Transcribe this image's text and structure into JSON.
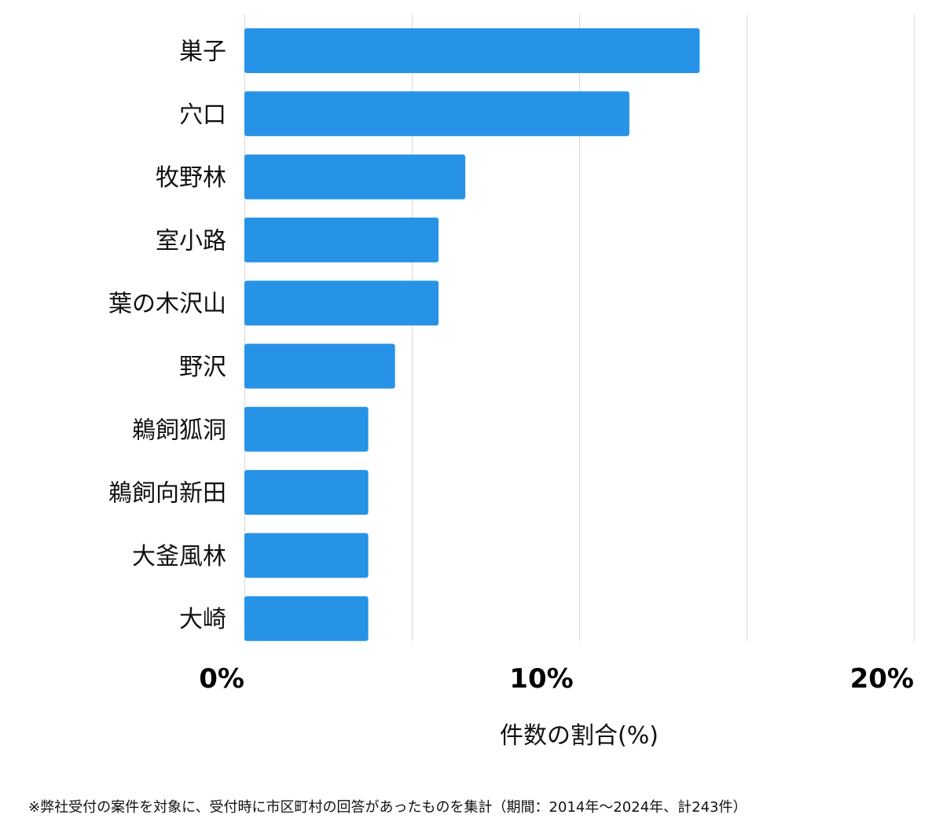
{
  "chart_data": {
    "type": "bar",
    "orientation": "horizontal",
    "categories": [
      "巣子",
      "穴口",
      "牧野林",
      "室小路",
      "葉の木沢山",
      "野沢",
      "鵜飼狐洞",
      "鵜飼向新田",
      "大釜風林",
      "大崎"
    ],
    "values": [
      13.6,
      11.5,
      6.6,
      5.8,
      5.8,
      4.5,
      3.7,
      3.7,
      3.7,
      3.7
    ],
    "xlim": [
      0,
      20
    ],
    "ticks": [
      0,
      10,
      20
    ],
    "tick_labels": [
      "0%",
      "10%",
      "20%"
    ],
    "grid_values": [
      0,
      5,
      10,
      15,
      20
    ],
    "xlabel": "件数の割合(%)",
    "ylabel": "",
    "bar_color": "#2793e6",
    "grid_color": "#d9d9d9"
  },
  "footnote": "※弊社受付の案件を対象に、受付時に市区町村の回答があったものを集計（期間：2014年〜2024年、計243件）"
}
